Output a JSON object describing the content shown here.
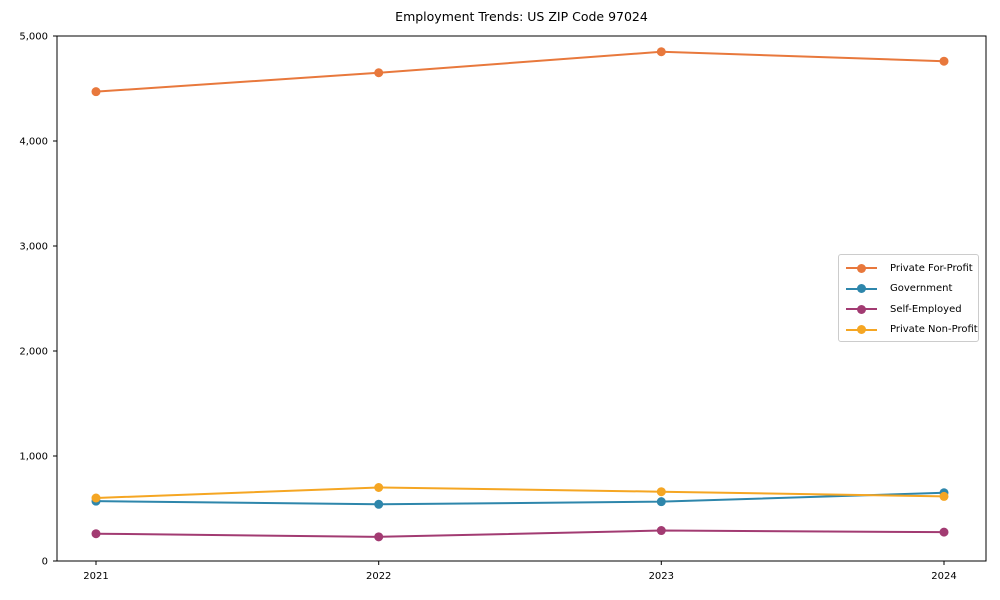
{
  "chart_data": {
    "type": "line",
    "title": "Employment Trends: US ZIP Code 97024",
    "xlabel": "",
    "ylabel": "",
    "x": [
      "2021",
      "2022",
      "2023",
      "2024"
    ],
    "series": [
      {
        "name": "Private For-Profit",
        "color": "#E8783C",
        "values": [
          4470,
          4650,
          4850,
          4760
        ]
      },
      {
        "name": "Government",
        "color": "#2E86AB",
        "values": [
          570,
          540,
          565,
          650
        ]
      },
      {
        "name": "Self-Employed",
        "color": "#A23B72",
        "values": [
          260,
          230,
          290,
          275
        ]
      },
      {
        "name": "Private Non-Profit",
        "color": "#F5A623",
        "values": [
          600,
          700,
          660,
          615
        ]
      }
    ],
    "ylim": [
      0,
      5000
    ],
    "yticks": [
      0,
      1000,
      2000,
      3000,
      4000,
      5000
    ],
    "ytick_labels": [
      "0",
      "1,000",
      "2,000",
      "3,000",
      "4,000",
      "5,000"
    ],
    "grid": false,
    "legend_position": "center-right",
    "axis_color": "#000000"
  }
}
